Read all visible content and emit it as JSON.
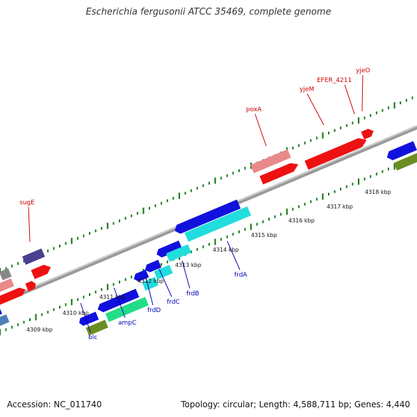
{
  "title": "Escherichia fergusonii ATCC 35469, complete genome",
  "footer": {
    "accession": "Accession: NC_011740",
    "summary": "Topology: circular; Length: 4,588,711 bp; Genes: 4,440"
  },
  "colors": {
    "forward_gene": "#ee1111",
    "forward_gene_light": "#e88a8a",
    "reverse_gene": "#1111dd",
    "reverse_cds_light": "#22dddd",
    "reverse_cds_green": "#22dd88",
    "rna_olive": "#6b8e23",
    "dark_purple": "#4b3f8f",
    "grey": "#888888",
    "backbone": "#8a8a8a",
    "tick": "#1a7a1a",
    "forward_label": "#cc0000",
    "reverse_label": "#0000bb"
  },
  "ticks": [
    {
      "label": "4309 kbp"
    },
    {
      "label": "4310 kbp"
    },
    {
      "label": "4311 kbp"
    },
    {
      "label": "4312 kbp"
    },
    {
      "label": "4313 kbp"
    },
    {
      "label": "4314 kbp"
    },
    {
      "label": "4315 kbp"
    },
    {
      "label": "4316 kbp"
    },
    {
      "label": "4317 kbp"
    },
    {
      "label": "4318 kbp"
    }
  ],
  "forward_labels": [
    "sugE",
    "poxA",
    "yjeM",
    "EFER_4211",
    "yjeO"
  ],
  "reverse_labels": [
    "blc",
    "ampC",
    "frdD",
    "frdC",
    "frdB",
    "frdA"
  ]
}
